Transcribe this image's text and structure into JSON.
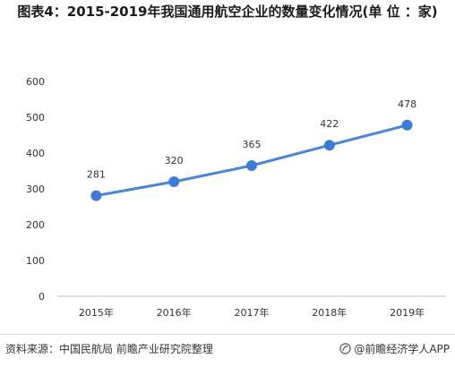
{
  "title": "图表4：2015-2019年我国通用航空企业的数量变化情况(单 位 ：家)",
  "footer": {
    "source": "资料来源：中国民航局 前瞻产业研究院整理",
    "credit": "@前瞻经济学人APP"
  },
  "colors": {
    "line": "#4a86d8",
    "point": "#3d7bd4",
    "axis": "#bfbfbf",
    "text": "#333333"
  },
  "chart_data": {
    "type": "line",
    "categories": [
      "2015年",
      "2016年",
      "2017年",
      "2018年",
      "2019年"
    ],
    "series": [
      {
        "values": [
          281,
          320,
          365,
          422,
          478
        ]
      }
    ],
    "data_labels": [
      "281",
      "320",
      "365",
      "422",
      "478"
    ],
    "yticks": [
      "0",
      "100",
      "200",
      "300",
      "400",
      "500",
      "600"
    ],
    "ylim": [
      0,
      600
    ],
    "grid": false,
    "legend": "none"
  }
}
